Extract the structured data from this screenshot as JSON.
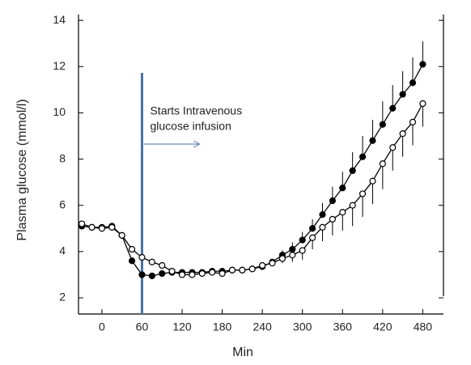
{
  "chart_data": {
    "type": "line",
    "x": [
      -30,
      -15,
      0,
      15,
      30,
      45,
      60,
      75,
      90,
      105,
      120,
      135,
      150,
      165,
      180,
      195,
      210,
      225,
      240,
      255,
      270,
      285,
      300,
      315,
      330,
      345,
      360,
      375,
      390,
      405,
      420,
      435,
      450,
      465,
      480
    ],
    "series": [
      {
        "color": "#000000",
        "marker": "filled",
        "values": [
          5.1,
          5.05,
          5.05,
          5.1,
          4.7,
          3.6,
          3.0,
          2.95,
          3.05,
          3.1,
          3.1,
          3.1,
          3.1,
          3.15,
          3.15,
          3.2,
          3.2,
          3.25,
          3.35,
          3.55,
          3.85,
          4.1,
          4.5,
          5.0,
          5.6,
          6.2,
          6.75,
          7.5,
          8.1,
          8.8,
          9.5,
          10.2,
          10.8,
          11.3,
          12.1
        ],
        "errors": [
          null,
          null,
          null,
          null,
          null,
          null,
          null,
          null,
          null,
          null,
          null,
          null,
          null,
          null,
          null,
          null,
          null,
          null,
          null,
          null,
          0.2,
          0.3,
          0.35,
          0.4,
          0.5,
          0.6,
          0.7,
          0.8,
          0.9,
          0.9,
          1.0,
          1.0,
          1.0,
          1.1,
          1.0
        ]
      },
      {
        "color": "#000000",
        "marker": "open",
        "values": [
          5.2,
          5.05,
          5.0,
          5.05,
          4.7,
          4.1,
          3.75,
          3.55,
          3.4,
          3.15,
          3.0,
          3.0,
          3.05,
          3.1,
          3.05,
          3.2,
          3.2,
          3.25,
          3.4,
          3.5,
          3.7,
          3.85,
          4.05,
          4.6,
          5.05,
          5.4,
          5.7,
          6.0,
          6.5,
          7.05,
          7.8,
          8.5,
          9.1,
          9.6,
          10.4
        ],
        "errors": [
          null,
          null,
          null,
          null,
          null,
          null,
          null,
          null,
          null,
          null,
          null,
          null,
          null,
          null,
          null,
          null,
          null,
          null,
          null,
          null,
          0.2,
          0.3,
          0.4,
          0.5,
          0.6,
          0.7,
          0.8,
          0.9,
          1.0,
          1.0,
          1.1,
          1.0,
          1.0,
          1.0,
          1.0
        ]
      }
    ],
    "xlabel": "Min",
    "ylabel": "Plasma glucose (mmol/l)",
    "xlim": [
      -35,
      511
    ],
    "ylim": [
      1.3,
      14.25
    ],
    "xticks": [
      0,
      60,
      120,
      180,
      240,
      300,
      360,
      420,
      480
    ],
    "yticks": [
      2,
      4,
      6,
      8,
      10,
      12,
      14
    ],
    "annotation": {
      "x": 60,
      "color": "#4a72aa",
      "text": [
        "Starts Intravenous",
        "glucose infusion"
      ]
    }
  }
}
